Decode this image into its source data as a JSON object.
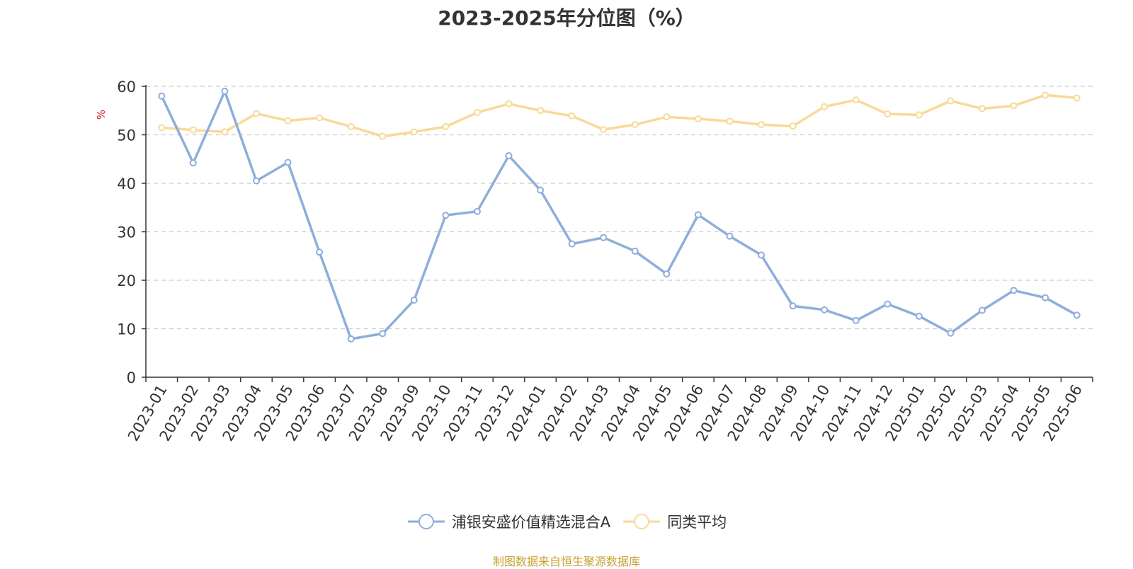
{
  "title": "2023-2025年分位图（%）",
  "source_note": "制图数据来自恒生聚源数据库",
  "colors": {
    "fund": "#8eaedb",
    "avg": "#f9d998",
    "axis": "#333333",
    "grid": "#cccccc",
    "ylabel": "#e01010"
  },
  "chart_data": {
    "type": "line",
    "title": "2023-2025年分位图（%）",
    "ylabel": "%",
    "xlabel": "",
    "ylim": [
      0,
      60
    ],
    "yticks": [
      0,
      10,
      20,
      30,
      40,
      50,
      60
    ],
    "grid": true,
    "legend_position": "bottom",
    "categories": [
      "2023-01",
      "2023-02",
      "2023-03",
      "2023-04",
      "2023-05",
      "2023-06",
      "2023-07",
      "2023-08",
      "2023-09",
      "2023-10",
      "2023-11",
      "2023-12",
      "2024-01",
      "2024-02",
      "2024-03",
      "2024-04",
      "2024-05",
      "2024-06",
      "2024-07",
      "2024-08",
      "2024-09",
      "2024-10",
      "2024-11",
      "2024-12",
      "2025-01",
      "2025-02",
      "2025-03",
      "2025-04",
      "2025-05",
      "2025-06"
    ],
    "series": [
      {
        "name": "浦银安盛价值精选混合A",
        "color": "#8eaedb",
        "values": [
          58.0,
          44.2,
          59.0,
          40.5,
          44.3,
          25.8,
          7.9,
          9.0,
          15.9,
          33.4,
          34.2,
          45.7,
          38.6,
          27.5,
          28.8,
          26.0,
          21.3,
          33.5,
          29.1,
          25.2,
          14.7,
          13.9,
          11.7,
          15.1,
          12.6,
          9.1,
          13.8,
          17.9,
          16.4,
          12.8
        ]
      },
      {
        "name": "同类平均",
        "color": "#f9d998",
        "values": [
          51.5,
          51.0,
          50.6,
          54.4,
          52.9,
          53.5,
          51.7,
          49.7,
          50.6,
          51.7,
          54.6,
          56.4,
          55.0,
          53.9,
          51.1,
          52.1,
          53.7,
          53.3,
          52.8,
          52.1,
          51.8,
          55.8,
          57.2,
          54.3,
          54.1,
          57.0,
          55.4,
          56.0,
          58.2,
          57.6
        ]
      }
    ]
  }
}
